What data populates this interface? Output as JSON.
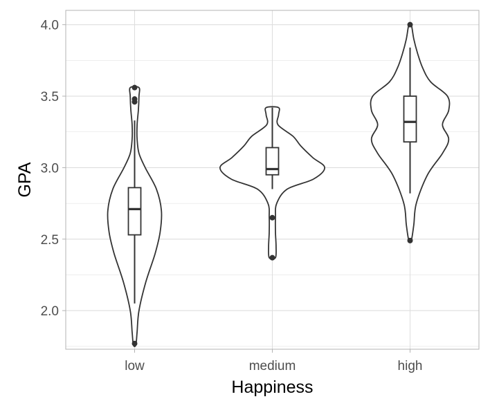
{
  "chart_data": {
    "type": "violin",
    "xlabel": "Happiness",
    "ylabel": "GPA",
    "categories": [
      "low",
      "medium",
      "high"
    ],
    "ylim": [
      1.73,
      4.1
    ],
    "y_ticks": [
      2.0,
      2.5,
      3.0,
      3.5,
      4.0
    ],
    "y_tick_labels": [
      "2.0",
      "2.5",
      "3.0",
      "3.5",
      "4.0"
    ],
    "y_minor_ticks": [
      1.75,
      2.25,
      2.75,
      3.25,
      3.75
    ],
    "grid": true,
    "theme": "light",
    "colors": {
      "line": "#333333",
      "fill": "#ffffff",
      "grid": "#dedede",
      "panel_border": "#b3b3b3"
    },
    "series": [
      {
        "category": "low",
        "box": {
          "min": 2.05,
          "q1": 2.53,
          "median": 2.71,
          "q3": 2.86,
          "max": 3.33
        },
        "outliers": [
          1.77,
          3.46,
          3.48,
          3.56
        ],
        "violin": {
          "y": [
            1.76,
            1.85,
            2.0,
            2.2,
            2.4,
            2.55,
            2.7,
            2.85,
            3.0,
            3.1,
            3.2,
            3.3,
            3.4,
            3.5,
            3.56
          ],
          "width": [
            0.02,
            0.04,
            0.07,
            0.18,
            0.33,
            0.41,
            0.43,
            0.35,
            0.17,
            0.07,
            0.04,
            0.04,
            0.06,
            0.07,
            0.07
          ]
        }
      },
      {
        "category": "medium",
        "box": {
          "min": 2.85,
          "q1": 2.95,
          "median": 2.99,
          "q3": 3.14,
          "max": 3.42
        },
        "outliers": [
          2.37,
          2.65
        ],
        "violin": {
          "y": [
            2.37,
            2.45,
            2.55,
            2.65,
            2.75,
            2.85,
            2.92,
            3.0,
            3.07,
            3.15,
            3.22,
            3.3,
            3.37,
            3.42
          ],
          "width": [
            0.05,
            0.06,
            0.05,
            0.05,
            0.07,
            0.24,
            0.66,
            0.84,
            0.65,
            0.46,
            0.33,
            0.09,
            0.1,
            0.1
          ]
        }
      },
      {
        "category": "high",
        "box": {
          "min": 2.82,
          "q1": 3.18,
          "median": 3.32,
          "q3": 3.5,
          "max": 3.84
        },
        "outliers": [
          2.49,
          4.0
        ],
        "violin": {
          "y": [
            2.49,
            2.6,
            2.75,
            2.95,
            3.1,
            3.2,
            3.3,
            3.4,
            3.5,
            3.6,
            3.7,
            3.8,
            3.9,
            4.0
          ],
          "width": [
            0.02,
            0.06,
            0.1,
            0.28,
            0.52,
            0.62,
            0.52,
            0.62,
            0.6,
            0.33,
            0.2,
            0.12,
            0.06,
            0.02
          ]
        }
      }
    ]
  }
}
